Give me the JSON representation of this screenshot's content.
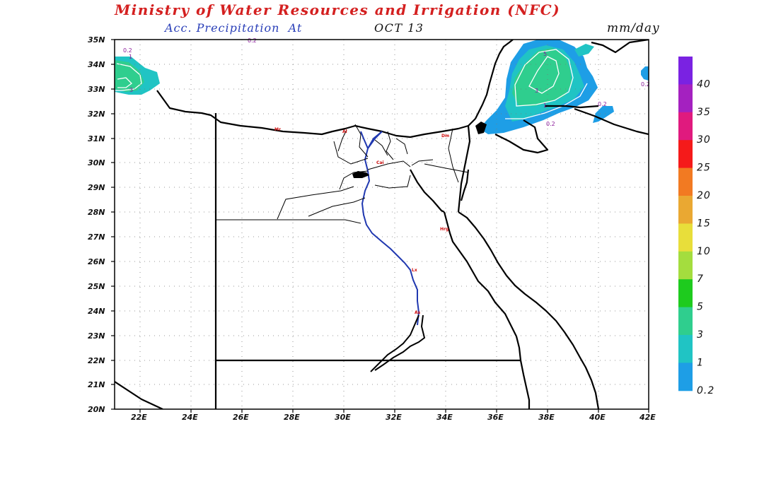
{
  "title": "Ministry of Water Resources and Irrigation (NFC)",
  "subtitle": "Acc. Precipitation",
  "subtitle_at": "At",
  "date": "OCT 13",
  "units": "mm/day",
  "map": {
    "lat_labels": [
      "35N",
      "34N",
      "33N",
      "32N",
      "31N",
      "30N",
      "29N",
      "28N",
      "27N",
      "26N",
      "25N",
      "24N",
      "23N",
      "22N",
      "21N",
      "20N"
    ],
    "lon_labels": [
      "22E",
      "24E",
      "26E",
      "28E",
      "30E",
      "32E",
      "34E",
      "36E",
      "38E",
      "40E",
      "42E"
    ],
    "contour_labels": [
      "0.2",
      "1",
      "3",
      "0.2",
      "5",
      "3",
      "1",
      "0.2",
      "0.2",
      "0.2"
    ],
    "city_codes": [
      "Mr",
      "Al",
      "Dm",
      "Cai",
      "Hrg",
      "Lx",
      "As"
    ]
  },
  "colorbar": {
    "labels": [
      "40",
      "35",
      "30",
      "25",
      "20",
      "15",
      "10",
      "7",
      "5",
      "3",
      "1",
      "0.2"
    ],
    "colors": [
      "#7a22e2",
      "#a421c0",
      "#e01a7e",
      "#f51a1a",
      "#f27a22",
      "#eaa832",
      "#e8de3a",
      "#a4dd3e",
      "#1ecb1e",
      "#2fce8e",
      "#20c4c4",
      "#1e9ee6"
    ]
  }
}
